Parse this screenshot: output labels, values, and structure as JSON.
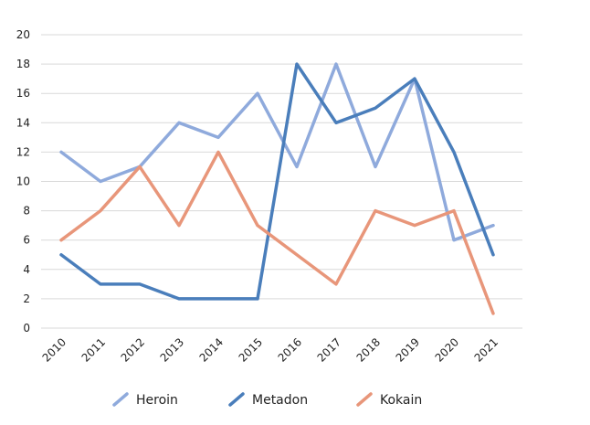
{
  "chart_data": {
    "type": "line",
    "x": [
      "2010",
      "2011",
      "2012",
      "2013",
      "2014",
      "2015",
      "2016",
      "2017",
      "2018",
      "2019",
      "2020",
      "2021"
    ],
    "ylim": [
      0,
      20
    ],
    "yticks": [
      "0",
      "2",
      "4",
      "6",
      "8",
      "10",
      "12",
      "14",
      "16",
      "18",
      "20"
    ],
    "grid": true,
    "legend_position": "bottom",
    "series": [
      {
        "name": "Heroin",
        "color": "#8faadc",
        "values": [
          12,
          10,
          11,
          14,
          13,
          16,
          11,
          18,
          11,
          17,
          6,
          7
        ]
      },
      {
        "name": "Metadon",
        "color": "#4a7ebb",
        "values": [
          5,
          3,
          3,
          2,
          2,
          2,
          18,
          14,
          15,
          17,
          12,
          5
        ]
      },
      {
        "name": "Kokain",
        "color": "#e8967a",
        "values": [
          6,
          8,
          11,
          7,
          12,
          7,
          5,
          3,
          8,
          7,
          8,
          1
        ]
      }
    ]
  }
}
